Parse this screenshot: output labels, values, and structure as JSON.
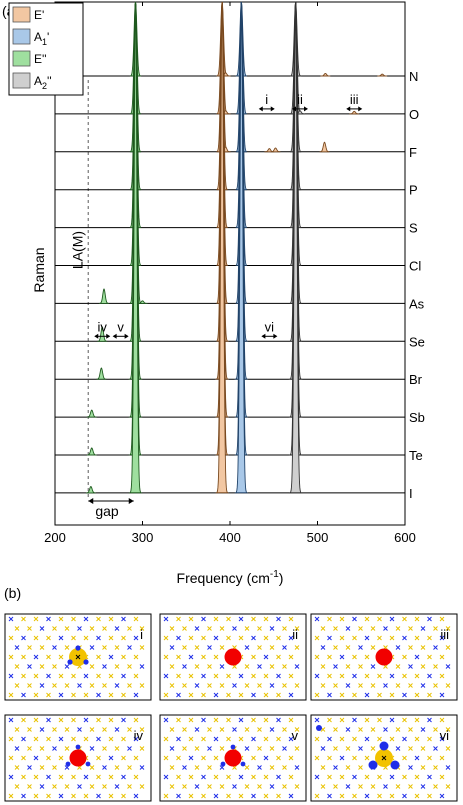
{
  "panel_labels": {
    "a": "(a)",
    "b": "(b)"
  },
  "chart_data": {
    "type": "line",
    "xlabel": "Frequency (cm",
    "xlabel_sup": "-1",
    "xlabel_close": ")",
    "ylabel": "Raman",
    "xlim": [
      200,
      600
    ],
    "xticks": [
      "200",
      "300",
      "400",
      "500",
      "600"
    ],
    "legend": [
      {
        "label": "E'",
        "color": "#f2c7a2"
      },
      {
        "label": "A",
        "sub": "1",
        "tail": "'",
        "color": "#a9c8e8"
      },
      {
        "label": "E''",
        "color": "#9fdf9f"
      },
      {
        "label": "A",
        "sub": "2",
        "tail": "''",
        "color": "#cfcfcf"
      }
    ],
    "legend_placement": "top-left",
    "la_label": "LA(M)",
    "la_x": 238,
    "gap_label": "gap",
    "gap_range": [
      238,
      290
    ],
    "series": [
      {
        "name": "N",
        "peaks": [
          {
            "x": 292,
            "h": 9,
            "c": "E''"
          },
          {
            "x": 391,
            "h": 9,
            "c": "E'"
          },
          {
            "x": 413,
            "h": 9,
            "c": "A1'"
          },
          {
            "x": 475,
            "h": 9,
            "c": "A2''"
          },
          {
            "x": 395,
            "h": 0.1,
            "c": "E'"
          },
          {
            "x": 509,
            "h": 0.08,
            "c": "E'"
          },
          {
            "x": 574,
            "h": 0.06,
            "c": "E'"
          }
        ]
      },
      {
        "name": "O",
        "peaks": [
          {
            "x": 292,
            "h": 9,
            "c": "E''"
          },
          {
            "x": 391,
            "h": 9,
            "c": "E'"
          },
          {
            "x": 413,
            "h": 9,
            "c": "A1'"
          },
          {
            "x": 475,
            "h": 9,
            "c": "A2''"
          },
          {
            "x": 395,
            "h": 0.1,
            "c": "E'"
          },
          {
            "x": 480,
            "h": 0.1,
            "c": "A2''"
          },
          {
            "x": 542,
            "h": 0.08,
            "c": "E'"
          }
        ]
      },
      {
        "name": "F",
        "peaks": [
          {
            "x": 292,
            "h": 9,
            "c": "E''"
          },
          {
            "x": 391,
            "h": 9,
            "c": "E'"
          },
          {
            "x": 413,
            "h": 9,
            "c": "A1'"
          },
          {
            "x": 475,
            "h": 9,
            "c": "A2''"
          },
          {
            "x": 395,
            "h": 0.15,
            "c": "E'"
          },
          {
            "x": 445,
            "h": 0.1,
            "c": "E'"
          },
          {
            "x": 452,
            "h": 0.12,
            "c": "E'"
          },
          {
            "x": 508,
            "h": 0.3,
            "c": "E'"
          }
        ]
      },
      {
        "name": "P",
        "peaks": [
          {
            "x": 292,
            "h": 9,
            "c": "E''"
          },
          {
            "x": 391,
            "h": 9,
            "c": "E'"
          },
          {
            "x": 413,
            "h": 9,
            "c": "A1'"
          },
          {
            "x": 475,
            "h": 9,
            "c": "A2''"
          }
        ]
      },
      {
        "name": "S",
        "peaks": [
          {
            "x": 292,
            "h": 9,
            "c": "E''"
          },
          {
            "x": 391,
            "h": 9,
            "c": "E'"
          },
          {
            "x": 413,
            "h": 9,
            "c": "A1'"
          },
          {
            "x": 475,
            "h": 9,
            "c": "A2''"
          }
        ]
      },
      {
        "name": "Cl",
        "peaks": [
          {
            "x": 292,
            "h": 9,
            "c": "E''"
          },
          {
            "x": 391,
            "h": 9,
            "c": "E'"
          },
          {
            "x": 413,
            "h": 9,
            "c": "A1'"
          },
          {
            "x": 475,
            "h": 9,
            "c": "A2''"
          }
        ]
      },
      {
        "name": "As",
        "peaks": [
          {
            "x": 292,
            "h": 9,
            "c": "E''"
          },
          {
            "x": 391,
            "h": 9,
            "c": "E'"
          },
          {
            "x": 413,
            "h": 9,
            "c": "A1'"
          },
          {
            "x": 475,
            "h": 9,
            "c": "A2''"
          },
          {
            "x": 256,
            "h": 0.45,
            "c": "E''"
          },
          {
            "x": 300,
            "h": 0.08,
            "c": "E''"
          }
        ]
      },
      {
        "name": "Se",
        "peaks": [
          {
            "x": 292,
            "h": 9,
            "c": "E''"
          },
          {
            "x": 391,
            "h": 9,
            "c": "E'"
          },
          {
            "x": 413,
            "h": 9,
            "c": "A1'"
          },
          {
            "x": 475,
            "h": 9,
            "c": "A2''"
          },
          {
            "x": 254,
            "h": 0.45,
            "c": "E''"
          }
        ]
      },
      {
        "name": "Br",
        "peaks": [
          {
            "x": 292,
            "h": 9,
            "c": "E''"
          },
          {
            "x": 391,
            "h": 9,
            "c": "E'"
          },
          {
            "x": 413,
            "h": 9,
            "c": "A1'"
          },
          {
            "x": 475,
            "h": 9,
            "c": "A2''"
          },
          {
            "x": 253,
            "h": 0.35,
            "c": "E''"
          }
        ]
      },
      {
        "name": "Sb",
        "peaks": [
          {
            "x": 292,
            "h": 9,
            "c": "E''"
          },
          {
            "x": 391,
            "h": 9,
            "c": "E'"
          },
          {
            "x": 413,
            "h": 9,
            "c": "A1'"
          },
          {
            "x": 475,
            "h": 9,
            "c": "A2''"
          },
          {
            "x": 242,
            "h": 0.22,
            "c": "E''"
          }
        ]
      },
      {
        "name": "Te",
        "peaks": [
          {
            "x": 292,
            "h": 9,
            "c": "E''"
          },
          {
            "x": 391,
            "h": 9,
            "c": "E'"
          },
          {
            "x": 413,
            "h": 9,
            "c": "A1'"
          },
          {
            "x": 475,
            "h": 9,
            "c": "A2''"
          },
          {
            "x": 242,
            "h": 0.22,
            "c": "E''"
          }
        ]
      },
      {
        "name": "I",
        "peaks": [
          {
            "x": 292,
            "h": 9,
            "c": "E''"
          },
          {
            "x": 391,
            "h": 9,
            "c": "E'"
          },
          {
            "x": 413,
            "h": 9,
            "c": "A1'"
          },
          {
            "x": 475,
            "h": 9,
            "c": "A2''"
          },
          {
            "x": 241,
            "h": 0.2,
            "c": "E''"
          }
        ]
      }
    ],
    "annotations": [
      {
        "label": "i",
        "x": 442,
        "row": "O"
      },
      {
        "label": "ii",
        "x": 480,
        "row": "O"
      },
      {
        "label": "iii",
        "x": 542,
        "row": "O"
      },
      {
        "label": "iv",
        "x": 254,
        "row": "Se"
      },
      {
        "label": "v",
        "x": 275,
        "row": "Se"
      },
      {
        "label": "vi",
        "x": 445,
        "row": "Se"
      }
    ]
  },
  "lattice_panels": [
    "i",
    "ii",
    "iii",
    "iv",
    "v",
    "vi"
  ],
  "colors": {
    "E_prime": "#f2c7a2",
    "A1_prime": "#a9c8e8",
    "E_dprime": "#9fdf9f",
    "A2_dprime": "#cfcfcf",
    "blue_atom": "#1f2ee8",
    "yellow_atom": "#e9c200",
    "red_atom": "#f20000",
    "gold_disc": "#f2c200"
  }
}
